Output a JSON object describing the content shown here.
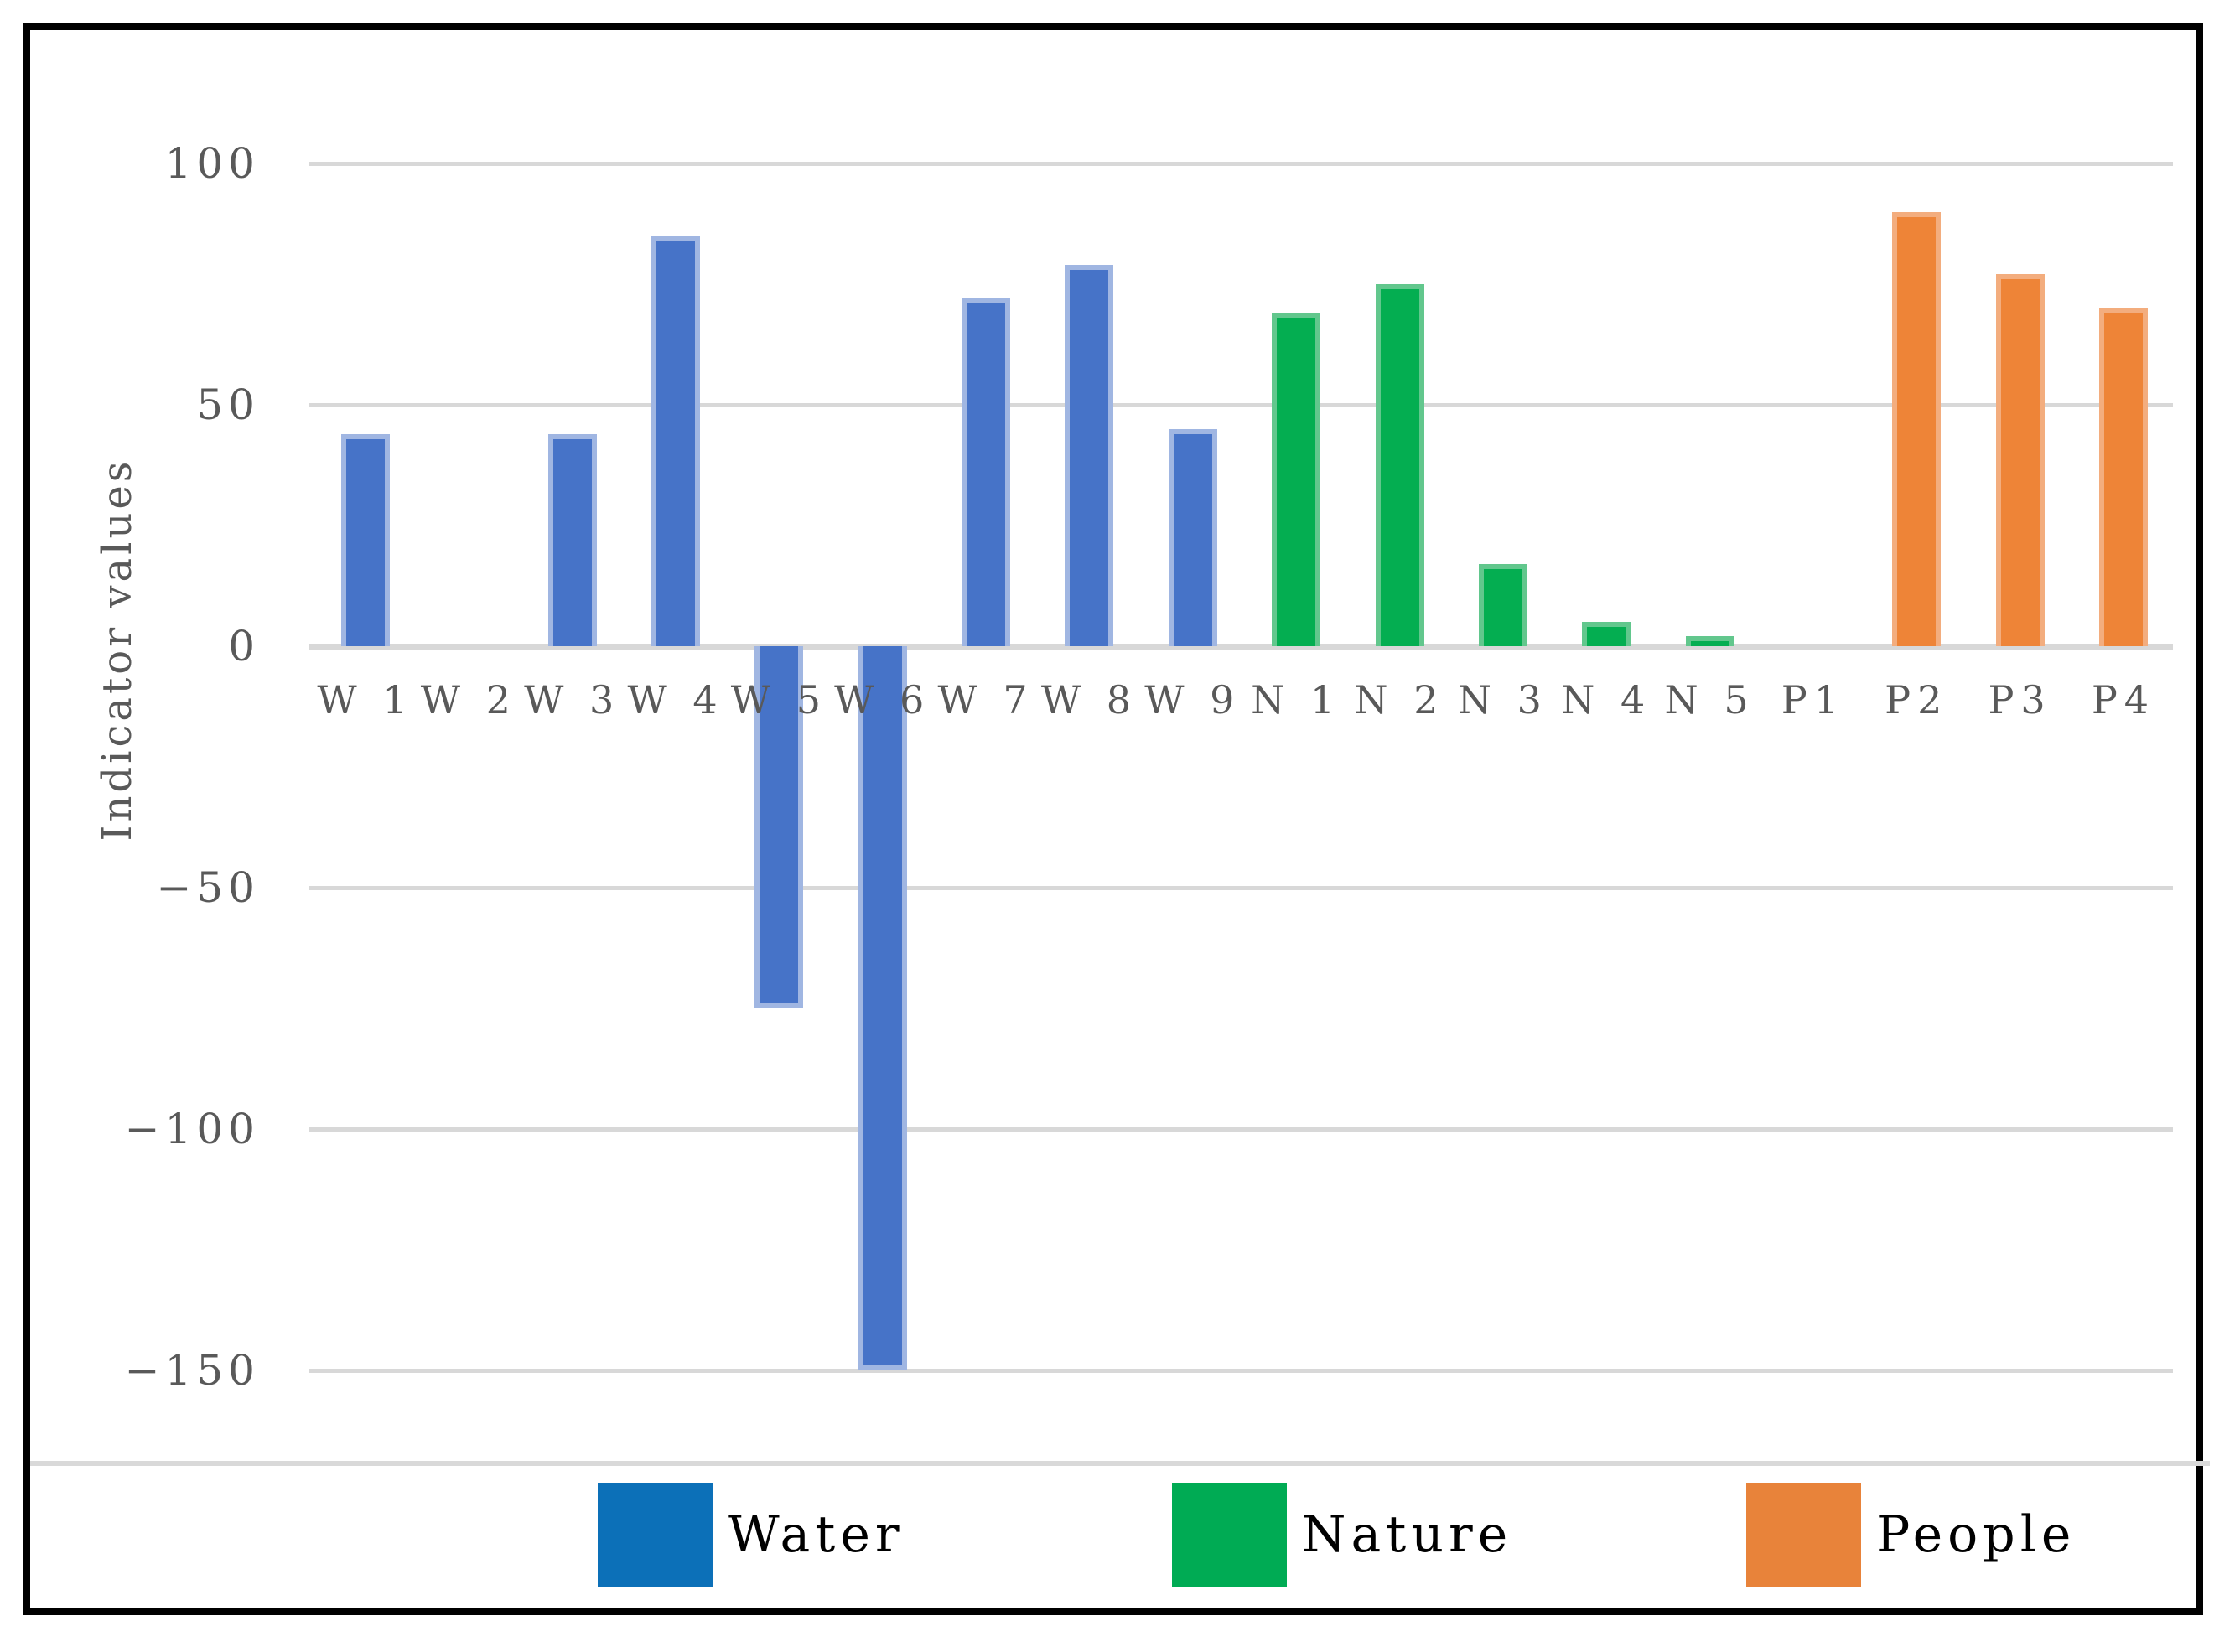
{
  "chart_data": {
    "type": "bar",
    "title": "",
    "xlabel": "",
    "ylabel": "Indicator values",
    "ylim": [
      -150,
      100
    ],
    "yticks": [
      100,
      50,
      0,
      -50,
      -100,
      -150
    ],
    "ytick_labels": [
      "100",
      "50",
      "0",
      "−50",
      "−100",
      "−150"
    ],
    "grid": "horizontal",
    "legend_position": "bottom",
    "categories": [
      "W 1",
      "W 2",
      "W 3",
      "W 4",
      "W 5",
      "W 6",
      "W 7",
      "W 8",
      "W 9",
      "N 1",
      "N 2",
      "N 3",
      "N 4",
      "N 5",
      "P1",
      "P2",
      "P3",
      "P4"
    ],
    "groups": [
      {
        "name": "Water",
        "bar_fill": "#4673c8",
        "bar_edge": "#a0b6e2",
        "legend_color": "#0c70b8",
        "items": [
          {
            "label": "W 1",
            "value": 44
          },
          {
            "label": "W 2",
            "value": 0
          },
          {
            "label": "W 3",
            "value": 44
          },
          {
            "label": "W 4",
            "value": 85
          },
          {
            "label": "W 5",
            "value": -75
          },
          {
            "label": "W 6",
            "value": -150
          },
          {
            "label": "W 7",
            "value": 72
          },
          {
            "label": "W 8",
            "value": 79
          },
          {
            "label": "W 9",
            "value": 45
          }
        ]
      },
      {
        "name": "Nature",
        "bar_fill": "#04ae51",
        "bar_edge": "#62c78d",
        "legend_color": "#00ab54",
        "items": [
          {
            "label": "N 1",
            "value": 69
          },
          {
            "label": "N 2",
            "value": 75
          },
          {
            "label": "N 3",
            "value": 17
          },
          {
            "label": "N 4",
            "value": 5
          },
          {
            "label": "N 5",
            "value": 2
          }
        ]
      },
      {
        "name": "People",
        "bar_fill": "#ee8437",
        "bar_edge": "#f3ad7e",
        "legend_color": "#e8833a",
        "items": [
          {
            "label": "P1",
            "value": 0
          },
          {
            "label": "P2",
            "value": 90
          },
          {
            "label": "P3",
            "value": 77
          },
          {
            "label": "P4",
            "value": 70
          }
        ]
      }
    ],
    "legend": {
      "items": [
        {
          "label": "Water",
          "color": "#0c70b8"
        },
        {
          "label": "Nature",
          "color": "#00ab54"
        },
        {
          "label": "People",
          "color": "#e8833a"
        }
      ]
    }
  }
}
